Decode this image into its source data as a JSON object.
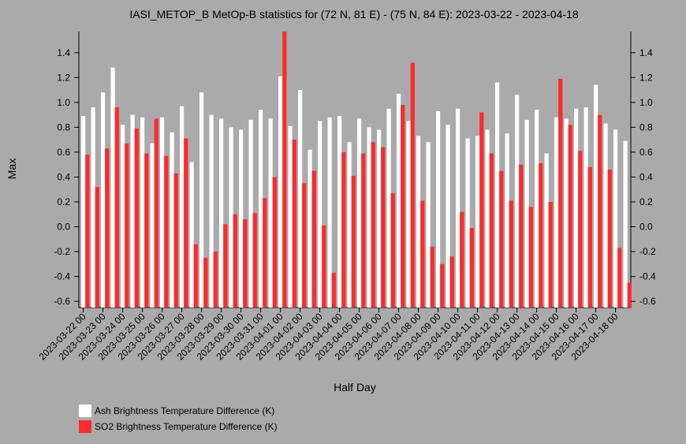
{
  "chart_data": {
    "type": "bar",
    "title": "IASI_METOP_B MetOp-B statistics for (72 N, 81 E) - (75 N, 84 E): 2023-03-22 - 2023-04-18",
    "xlabel": "Half Day",
    "ylabel": "Max",
    "ylim": [
      -0.65,
      1.57
    ],
    "y_ticks": [
      "-0.6",
      "-0.4",
      "-0.2",
      "0.0",
      "0.2",
      "0.4",
      "0.6",
      "0.8",
      "1.0",
      "1.2",
      "1.4"
    ],
    "x_tick_labels": [
      "2023-03-22 00",
      "2023-03-23 00",
      "2023-03-24 00",
      "2023-03-25 00",
      "2023-03-26 00",
      "2023-03-27 00",
      "2023-03-28 00",
      "2023-03-29 00",
      "2023-03-30 00",
      "2023-03-31 00",
      "2023-04-01 00",
      "2023-04-02 00",
      "2023-04-03 00",
      "2023-04-04 00",
      "2023-04-05 00",
      "2023-04-06 00",
      "2023-04-07 00",
      "2023-04-08 00",
      "2023-04-09 00",
      "2023-04-10 00",
      "2023-04-11 00",
      "2023-04-12 00",
      "2023-04-13 00",
      "2023-04-14 00",
      "2023-04-15 00",
      "2023-04-16 00",
      "2023-04-17 00",
      "2023-04-18 00"
    ],
    "grid": false,
    "legend_position": "bottom-left",
    "series": [
      {
        "name": "Ash Brightness Temperature Difference (K)",
        "color": "#ffffff",
        "values": [
          0.89,
          0.96,
          1.08,
          1.28,
          0.82,
          0.9,
          0.88,
          0.67,
          0.88,
          0.76,
          0.97,
          0.52,
          1.08,
          0.9,
          0.87,
          0.8,
          0.78,
          0.86,
          0.94,
          0.87,
          1.21,
          0.81,
          1.1,
          0.62,
          0.85,
          0.88,
          0.89,
          0.68,
          0.87,
          0.8,
          0.78,
          0.95,
          1.07,
          0.85,
          0.73,
          0.68,
          0.93,
          0.82,
          0.95,
          0.71,
          0.73,
          0.78,
          1.16,
          0.75,
          1.06,
          0.86,
          0.94,
          0.59,
          0.88,
          0.87,
          0.95,
          0.96,
          1.14,
          0.83,
          0.78,
          0.69
        ]
      },
      {
        "name": "SO2 Brightness Temperature Difference (K)",
        "color": "#ff2a2a",
        "values": [
          0.58,
          0.32,
          0.63,
          0.96,
          0.67,
          0.79,
          0.59,
          0.87,
          0.57,
          0.43,
          0.71,
          -0.14,
          -0.25,
          -0.2,
          0.02,
          0.1,
          0.06,
          0.11,
          0.23,
          0.4,
          1.57,
          0.7,
          0.35,
          0.45,
          0.01,
          -0.37,
          0.6,
          0.41,
          0.59,
          0.68,
          0.64,
          0.27,
          0.98,
          1.32,
          0.21,
          -0.16,
          -0.3,
          -0.24,
          0.12,
          -0.01,
          0.92,
          0.59,
          0.45,
          0.21,
          0.5,
          0.16,
          0.51,
          0.2,
          1.19,
          0.82,
          0.61,
          0.48,
          0.9,
          0.46,
          -0.17,
          -0.45
        ]
      }
    ]
  }
}
